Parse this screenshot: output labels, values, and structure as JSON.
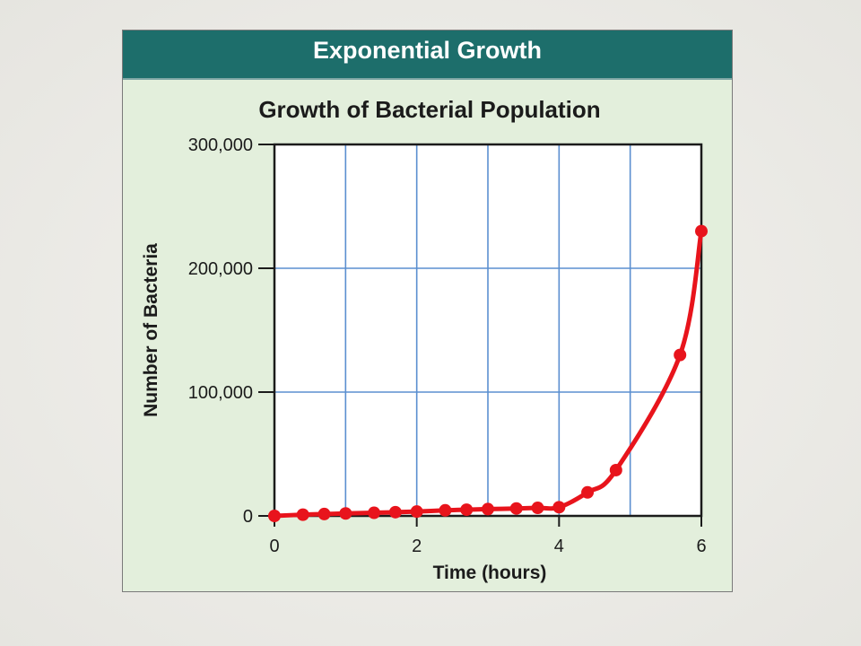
{
  "header": {
    "title": "Exponential Growth"
  },
  "chart_data": {
    "type": "line",
    "title": "Growth of Bacterial Population",
    "xlabel": "Time (hours)",
    "ylabel": "Number of Bacteria",
    "xlim": [
      0,
      6
    ],
    "ylim": [
      0,
      300000
    ],
    "x_ticks": [
      0,
      2,
      4,
      6
    ],
    "x_tick_labels": [
      "0",
      "2",
      "4",
      "6"
    ],
    "y_ticks": [
      0,
      100000,
      200000,
      300000
    ],
    "y_tick_labels": [
      "0",
      "100,000",
      "200,000",
      "300,000"
    ],
    "x_gridlines": [
      1,
      2,
      3,
      4,
      5
    ],
    "grid": true,
    "series": [
      {
        "color": "#e8141c",
        "x": [
          0,
          0.4,
          0.7,
          1.0,
          1.4,
          1.7,
          2.0,
          2.4,
          2.7,
          3.0,
          3.4,
          3.7,
          4.0,
          4.4,
          4.8,
          5.7,
          6.0
        ],
        "y": [
          0,
          1000,
          1500,
          2000,
          2500,
          3000,
          3500,
          4500,
          5000,
          5500,
          6000,
          6500,
          7000,
          19000,
          37000,
          130000,
          230000
        ]
      }
    ]
  },
  "colors": {
    "header_bg": "#1d6e6b",
    "panel_bg": "#e3efdc",
    "grid": "#5b8fd0",
    "series": "#e8141c"
  }
}
